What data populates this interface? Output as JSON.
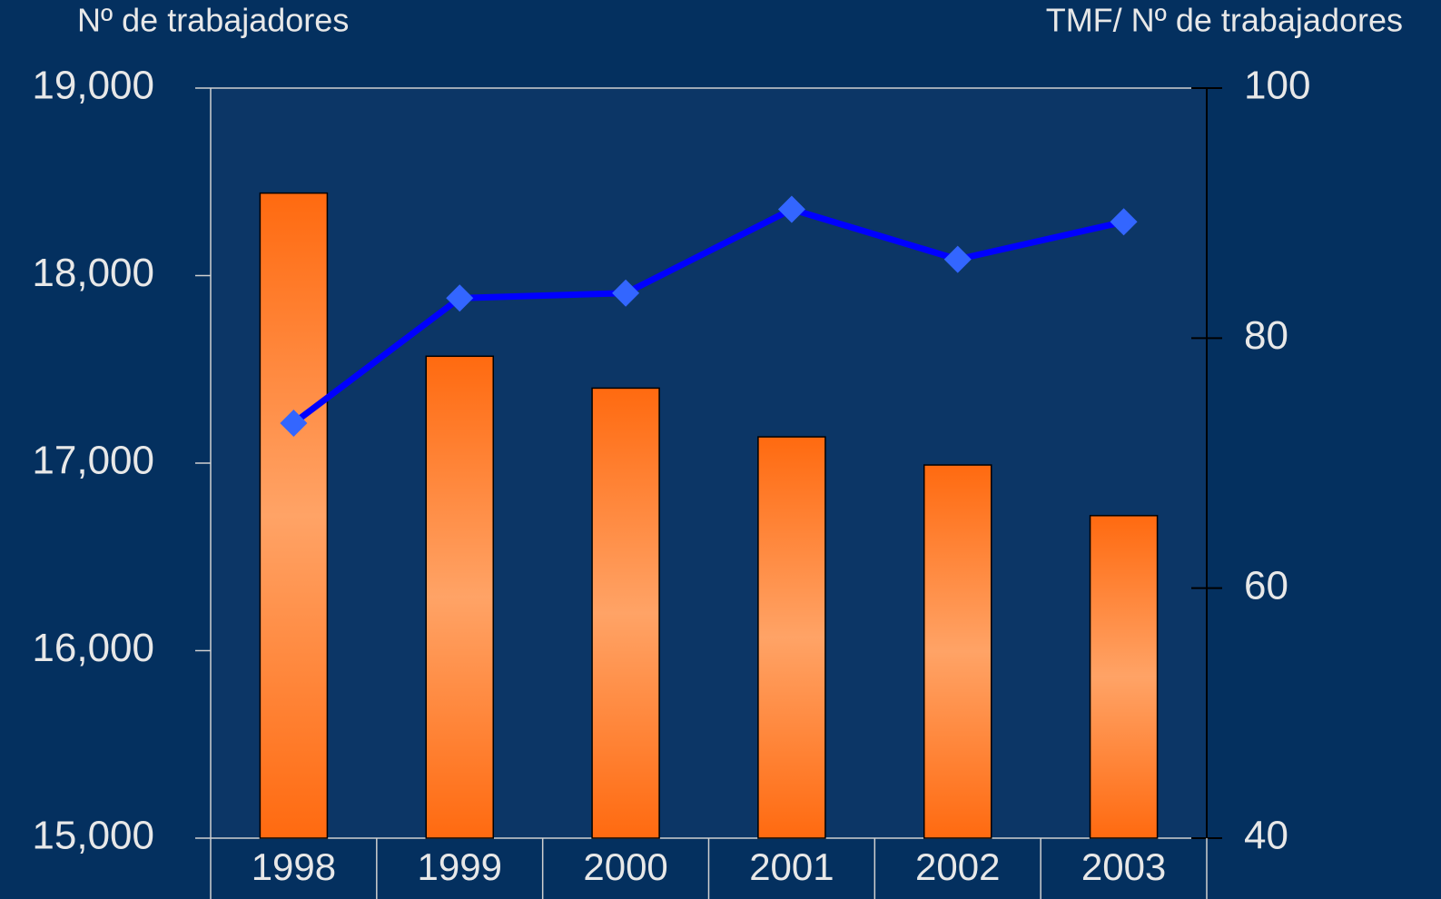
{
  "chart_data": {
    "type": "bar-line",
    "ylabel": "Nº de trabajadores",
    "y2label": "TMF/ Nº de trabajadores",
    "categories": [
      "1998",
      "1999",
      "2000",
      "2001",
      "2002",
      "2003"
    ],
    "series": [
      {
        "type": "bar",
        "color": "#ff6a10",
        "values": [
          18440,
          17570,
          17400,
          17140,
          16990,
          16720
        ]
      },
      {
        "type": "line",
        "axis": "y2",
        "color": "#0000ff",
        "marker_color": "#3366ff",
        "values": [
          73.2,
          83.2,
          83.6,
          90.3,
          86.3,
          89.3
        ]
      }
    ],
    "ylim": [
      15000,
      19000
    ],
    "yticks": [
      {
        "value": 15000,
        "label": "15,000"
      },
      {
        "value": 16000,
        "label": "16,000"
      },
      {
        "value": 17000,
        "label": "17,000"
      },
      {
        "value": 18000,
        "label": "18,000"
      },
      {
        "value": 19000,
        "label": "19,000"
      }
    ],
    "y2lim": [
      40,
      100
    ],
    "y2ticks": [
      40,
      60,
      80,
      100
    ]
  }
}
